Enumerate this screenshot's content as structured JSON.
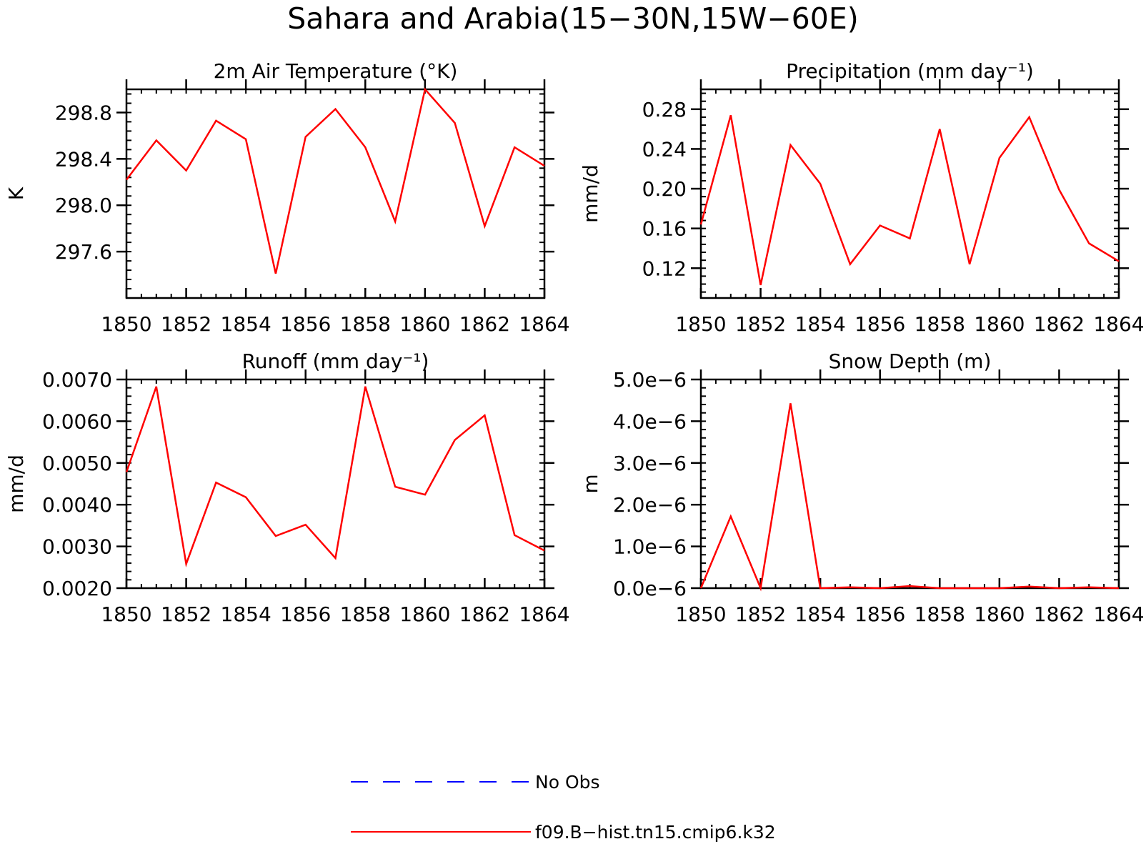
{
  "title": "Sahara and Arabia(15−30N,15W−60E)",
  "colors": {
    "model_line": "#ff0000",
    "obs_line": "#0000ff",
    "axis": "#000000"
  },
  "legend": {
    "items": [
      {
        "label": "No Obs",
        "style": "dashed",
        "color": "#0000ff"
      },
      {
        "label": "f09.B−hist.tn15.cmip6.k32",
        "style": "solid",
        "color": "#ff0000"
      }
    ]
  },
  "chart_data": [
    {
      "type": "line",
      "title": "2m Air Temperature (°K)",
      "ylabel": "K",
      "xlim": [
        1850,
        1864
      ],
      "ylim": [
        297.2,
        299.0
      ],
      "xticks": [
        1850,
        1852,
        1854,
        1856,
        1858,
        1860,
        1862,
        1864
      ],
      "xtick_labels": [
        "1850",
        "1852",
        "1854",
        "1856",
        "1858",
        "1860",
        "1862",
        "1864"
      ],
      "yticks": [
        297.6,
        298.0,
        298.4,
        298.8
      ],
      "ytick_labels": [
        "297.6",
        "298.0",
        "298.4",
        "298.8"
      ],
      "x": [
        1850,
        1851,
        1852,
        1853,
        1854,
        1855,
        1856,
        1857,
        1858,
        1859,
        1860,
        1861,
        1862,
        1863,
        1864
      ],
      "series": [
        {
          "values": [
            298.22,
            298.56,
            298.3,
            298.73,
            298.57,
            297.41,
            298.59,
            298.83,
            298.5,
            297.86,
            299.0,
            298.71,
            297.82,
            298.5,
            298.34
          ]
        }
      ]
    },
    {
      "type": "line",
      "title": "Precipitation (mm day⁻¹)",
      "ylabel": "mm/d",
      "xlim": [
        1850,
        1864
      ],
      "ylim": [
        0.09,
        0.3
      ],
      "xticks": [
        1850,
        1852,
        1854,
        1856,
        1858,
        1860,
        1862,
        1864
      ],
      "xtick_labels": [
        "1850",
        "1852",
        "1854",
        "1856",
        "1858",
        "1860",
        "1862",
        "1864"
      ],
      "yticks": [
        0.12,
        0.16,
        0.2,
        0.24,
        0.28
      ],
      "ytick_labels": [
        "0.12",
        "0.16",
        "0.20",
        "0.24",
        "0.28"
      ],
      "x": [
        1850,
        1851,
        1852,
        1853,
        1854,
        1855,
        1856,
        1857,
        1858,
        1859,
        1860,
        1861,
        1862,
        1863,
        1864
      ],
      "series": [
        {
          "values": [
            0.164,
            0.274,
            0.103,
            0.244,
            0.205,
            0.124,
            0.163,
            0.15,
            0.26,
            0.124,
            0.231,
            0.272,
            0.199,
            0.145,
            0.127
          ]
        }
      ]
    },
    {
      "type": "line",
      "title": "Runoff (mm day⁻¹)",
      "ylabel": "mm/d",
      "xlim": [
        1850,
        1864
      ],
      "ylim": [
        0.002,
        0.007
      ],
      "xticks": [
        1850,
        1852,
        1854,
        1856,
        1858,
        1860,
        1862,
        1864
      ],
      "xtick_labels": [
        "1850",
        "1852",
        "1854",
        "1856",
        "1858",
        "1860",
        "1862",
        "1864"
      ],
      "yticks": [
        0.002,
        0.003,
        0.004,
        0.005,
        0.006,
        0.007
      ],
      "ytick_labels": [
        "0.0020",
        "0.0030",
        "0.0040",
        "0.0050",
        "0.0060",
        "0.0070"
      ],
      "x": [
        1850,
        1851,
        1852,
        1853,
        1854,
        1855,
        1856,
        1857,
        1858,
        1859,
        1860,
        1861,
        1862,
        1863,
        1864
      ],
      "series": [
        {
          "values": [
            0.00478,
            0.00683,
            0.00258,
            0.00453,
            0.00418,
            0.00325,
            0.00352,
            0.00272,
            0.00683,
            0.00443,
            0.00424,
            0.00555,
            0.00614,
            0.00327,
            0.0029
          ]
        }
      ]
    },
    {
      "type": "line",
      "title": "Snow Depth (m)",
      "ylabel": "m",
      "xlim": [
        1850,
        1864
      ],
      "ylim": [
        0,
        5e-06
      ],
      "xticks": [
        1850,
        1852,
        1854,
        1856,
        1858,
        1860,
        1862,
        1864
      ],
      "xtick_labels": [
        "1850",
        "1852",
        "1854",
        "1856",
        "1858",
        "1860",
        "1862",
        "1864"
      ],
      "yticks": [
        0,
        1e-06,
        2e-06,
        3e-06,
        4e-06,
        5e-06
      ],
      "ytick_labels": [
        "0.0e−6",
        "1.0e−6",
        "2.0e−6",
        "3.0e−6",
        "4.0e−6",
        "5.0e−6"
      ],
      "x": [
        1850,
        1851,
        1852,
        1853,
        1854,
        1855,
        1856,
        1857,
        1858,
        1859,
        1860,
        1861,
        1862,
        1863,
        1864
      ],
      "series": [
        {
          "values": [
            0,
            1.72e-06,
            0,
            4.43e-06,
            0,
            2e-08,
            0,
            5e-08,
            0,
            0,
            0,
            4e-08,
            0,
            2e-08,
            0
          ]
        }
      ]
    }
  ]
}
